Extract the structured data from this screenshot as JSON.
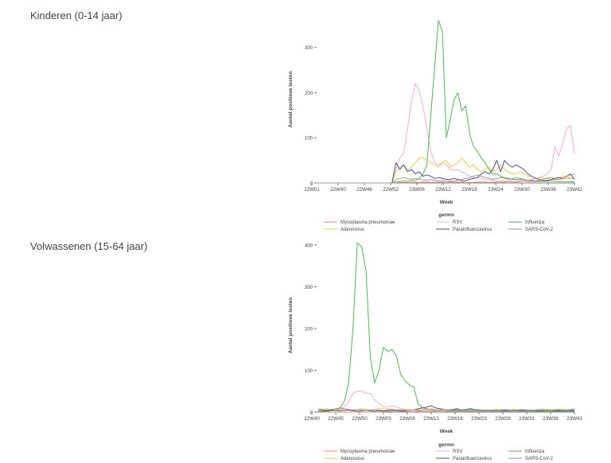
{
  "sections": [
    {
      "title": "Kinderen (0-14 jaar)"
    },
    {
      "title": "Volwassenen (15-64 jaar)"
    }
  ],
  "chart_data": [
    {
      "type": "line",
      "title": "Kinderen (0-14 jaar)",
      "xlabel": "Week",
      "ylabel": "Aantal positieve testen",
      "ylim": [
        0,
        370
      ],
      "yticks": [
        0,
        100,
        200,
        300
      ],
      "xticks": [
        "22W01",
        "22W40",
        "22W46",
        "22W52",
        "23W06",
        "23W12",
        "23W18",
        "23W24",
        "23W30",
        "23W36",
        "23W42"
      ],
      "legend_title": "germn",
      "legend": [
        "Mycoplasma pneumoniae",
        "RSV",
        "Influenza",
        "Adenovirus",
        "Parainfluenzavirus",
        "SARS-CoV-2"
      ],
      "x": [
        0,
        1,
        2,
        3,
        4,
        5,
        6,
        7,
        8,
        9,
        10,
        11,
        12,
        13,
        14,
        15,
        16,
        17,
        18,
        19,
        20,
        21,
        22,
        23,
        24,
        25,
        26,
        27,
        28,
        29,
        30,
        31,
        32,
        33,
        34,
        35,
        36,
        37,
        38,
        39,
        40,
        41,
        42,
        43,
        44,
        45,
        46,
        47,
        48,
        49,
        50,
        51,
        52,
        53,
        54,
        55,
        56,
        57,
        58,
        59,
        60,
        61,
        62,
        63,
        64,
        65,
        66
      ],
      "series": [
        {
          "name": "Mycoplasma pneumoniae",
          "values": [
            0,
            0,
            0,
            0,
            0,
            0,
            0,
            0,
            0,
            0,
            0,
            0,
            0,
            0,
            0,
            0,
            0,
            0,
            0,
            0,
            0,
            1,
            1,
            1,
            1,
            2,
            1,
            2,
            2,
            1,
            2,
            2,
            2,
            1,
            2,
            2,
            2,
            2,
            1,
            1,
            1,
            2,
            2,
            2,
            1,
            2,
            2,
            2,
            2,
            3,
            2,
            2,
            3,
            4,
            3,
            3,
            3,
            3,
            5,
            6,
            7,
            8,
            8,
            9,
            10,
            10,
            12
          ]
        },
        {
          "name": "RSV",
          "values": [
            0,
            0,
            0,
            0,
            0,
            0,
            0,
            0,
            0,
            0,
            0,
            0,
            0,
            0,
            0,
            0,
            0,
            0,
            0,
            0,
            30,
            55,
            65,
            120,
            180,
            220,
            205,
            170,
            120,
            70,
            45,
            40,
            45,
            40,
            30,
            28,
            30,
            25,
            20,
            15,
            12,
            12,
            10,
            8,
            6,
            6,
            5,
            5,
            4,
            4,
            4,
            4,
            5,
            5,
            6,
            8,
            10,
            12,
            15,
            20,
            30,
            80,
            60,
            90,
            120,
            128,
            65
          ]
        },
        {
          "name": "Influenza",
          "values": [
            0,
            0,
            0,
            0,
            0,
            0,
            0,
            0,
            0,
            0,
            0,
            0,
            0,
            0,
            0,
            0,
            0,
            0,
            0,
            0,
            2,
            3,
            4,
            4,
            5,
            6,
            10,
            20,
            40,
            150,
            260,
            360,
            335,
            100,
            140,
            185,
            200,
            160,
            170,
            110,
            80,
            70,
            55,
            45,
            30,
            20,
            20,
            15,
            12,
            10,
            8,
            8,
            8,
            7,
            6,
            6,
            5,
            4,
            4,
            4,
            4,
            4,
            3,
            3,
            3,
            3,
            2
          ]
        },
        {
          "name": "Adenovirus",
          "values": [
            0,
            0,
            0,
            0,
            0,
            0,
            0,
            0,
            0,
            0,
            0,
            0,
            0,
            0,
            0,
            0,
            0,
            0,
            0,
            0,
            25,
            35,
            40,
            30,
            35,
            45,
            55,
            55,
            50,
            45,
            40,
            35,
            45,
            50,
            35,
            40,
            45,
            55,
            45,
            35,
            40,
            30,
            25,
            30,
            35,
            25,
            30,
            40,
            30,
            25,
            20,
            20,
            25,
            20,
            15,
            15,
            10,
            12,
            10,
            12,
            12,
            10,
            12,
            15,
            15,
            12,
            10
          ]
        },
        {
          "name": "Parainfluenzavirus",
          "values": [
            0,
            0,
            0,
            0,
            0,
            0,
            0,
            0,
            0,
            0,
            0,
            0,
            0,
            0,
            0,
            0,
            0,
            0,
            0,
            0,
            45,
            30,
            40,
            25,
            30,
            20,
            25,
            15,
            18,
            15,
            10,
            12,
            10,
            8,
            8,
            10,
            8,
            5,
            5,
            8,
            10,
            12,
            20,
            25,
            20,
            30,
            50,
            25,
            50,
            40,
            35,
            40,
            35,
            30,
            20,
            15,
            10,
            8,
            5,
            5,
            8,
            10,
            12,
            10,
            15,
            20,
            8
          ]
        },
        {
          "name": "SARS-CoV-2",
          "values": [
            0,
            0,
            0,
            0,
            0,
            0,
            0,
            0,
            0,
            0,
            0,
            0,
            0,
            0,
            0,
            0,
            0,
            0,
            0,
            0,
            8,
            10,
            12,
            10,
            8,
            10,
            8,
            7,
            6,
            8,
            6,
            5,
            5,
            4,
            4,
            5,
            6,
            8,
            10,
            12,
            15,
            18,
            15,
            12,
            10,
            8,
            10,
            12,
            10,
            8,
            10,
            12,
            10,
            8,
            6,
            5,
            5,
            6,
            8,
            10,
            12,
            10,
            8,
            10,
            15,
            18,
            20
          ]
        }
      ]
    },
    {
      "type": "line",
      "title": "Volwassenen (15-64 jaar)",
      "xlabel": "Week",
      "ylabel": "Aantal positieve testen",
      "ylim": [
        0,
        415
      ],
      "yticks": [
        0,
        100,
        200,
        300,
        400
      ],
      "xticks": [
        "22W40",
        "22W45",
        "22W50",
        "23W03",
        "23W08",
        "23W13",
        "23W18",
        "23W23",
        "23W28",
        "23W33",
        "23W38",
        "23W43"
      ],
      "legend_title": "germn",
      "legend": [
        "Mycoplasma pneumoniae",
        "RSV",
        "Influenza",
        "Adenovirus",
        "Parainfluenzavirus",
        "SARS-CoV-2"
      ],
      "x": [
        0,
        1,
        2,
        3,
        4,
        5,
        6,
        7,
        8,
        9,
        10,
        11,
        12,
        13,
        14,
        15,
        16,
        17,
        18,
        19,
        20,
        21,
        22,
        23,
        24,
        25,
        26,
        27,
        28,
        29,
        30,
        31,
        32,
        33,
        34,
        35,
        36,
        37,
        38,
        39,
        40,
        41,
        42,
        43,
        44,
        45,
        46,
        47,
        48,
        49,
        50,
        51,
        52,
        53,
        54,
        55,
        56,
        57,
        58,
        59
      ],
      "series": [
        {
          "name": "Mycoplasma pneumoniae",
          "values": [
            0,
            0,
            0,
            0,
            0,
            0,
            0,
            0,
            0,
            0,
            0,
            0,
            0,
            0,
            0,
            0,
            1,
            1,
            0,
            1,
            1,
            1,
            1,
            2,
            1,
            1,
            1,
            2,
            1,
            1,
            2,
            2,
            2,
            1,
            2,
            2,
            1,
            2,
            2,
            1,
            2,
            2,
            2,
            2,
            2,
            2,
            2,
            2,
            2,
            3,
            2,
            2,
            3,
            3,
            3,
            4,
            4,
            5,
            6,
            7
          ]
        },
        {
          "name": "RSV",
          "values": [
            0,
            2,
            2,
            3,
            5,
            8,
            12,
            25,
            45,
            50,
            50,
            45,
            45,
            30,
            20,
            15,
            12,
            15,
            12,
            8,
            6,
            5,
            5,
            4,
            3,
            3,
            3,
            2,
            2,
            2,
            2,
            2,
            2,
            2,
            2,
            2,
            2,
            2,
            2,
            2,
            2,
            2,
            2,
            2,
            2,
            2,
            2,
            2,
            2,
            2,
            2,
            2,
            2,
            3,
            3,
            3,
            3,
            3,
            4,
            4
          ]
        },
        {
          "name": "Influenza",
          "values": [
            0,
            1,
            2,
            3,
            5,
            10,
            25,
            70,
            200,
            405,
            395,
            340,
            130,
            70,
            100,
            155,
            145,
            150,
            135,
            90,
            75,
            65,
            60,
            20,
            10,
            8,
            6,
            5,
            4,
            4,
            3,
            3,
            3,
            3,
            3,
            3,
            3,
            3,
            3,
            3,
            3,
            3,
            3,
            3,
            3,
            3,
            3,
            3,
            3,
            2,
            2,
            2,
            2,
            2,
            2,
            2,
            2,
            2,
            2,
            2
          ]
        },
        {
          "name": "Adenovirus",
          "values": [
            5,
            6,
            8,
            5,
            5,
            6,
            8,
            6,
            5,
            6,
            8,
            6,
            5,
            6,
            8,
            10,
            8,
            6,
            5,
            6,
            5,
            6,
            5,
            6,
            5,
            6,
            8,
            6,
            5,
            4,
            5,
            6,
            5,
            4,
            5,
            6,
            5,
            6,
            5,
            4,
            5,
            6,
            5,
            4,
            5,
            6,
            5,
            6,
            5,
            4,
            5,
            6,
            7,
            6,
            5,
            6,
            7,
            6,
            5,
            6
          ]
        },
        {
          "name": "Parainfluenzavirus",
          "values": [
            3,
            4,
            3,
            5,
            4,
            3,
            4,
            5,
            3,
            2,
            3,
            4,
            3,
            2,
            3,
            2,
            3,
            4,
            3,
            2,
            3,
            4,
            5,
            8,
            10,
            12,
            15,
            10,
            8,
            6,
            5,
            6,
            8,
            5,
            6,
            8,
            6,
            5,
            4,
            5,
            4,
            5,
            4,
            3,
            4,
            5,
            4,
            3,
            4,
            5,
            4,
            3,
            4,
            5,
            4,
            3,
            4,
            3,
            4,
            3
          ]
        },
        {
          "name": "SARS-CoV-2",
          "values": [
            8,
            6,
            5,
            6,
            8,
            10,
            8,
            6,
            5,
            6,
            5,
            4,
            5,
            6,
            5,
            4,
            5,
            6,
            5,
            4,
            5,
            4,
            5,
            4,
            5,
            6,
            5,
            4,
            5,
            6,
            5,
            4,
            5,
            4,
            5,
            6,
            5,
            4,
            5,
            4,
            5,
            4,
            5,
            6,
            5,
            4,
            5,
            6,
            5,
            4,
            5,
            6,
            5,
            4,
            5,
            6,
            5,
            4,
            5,
            6
          ]
        }
      ]
    }
  ],
  "colors": {
    "Mycoplasma pneumoniae": "#f08a5d",
    "RSV": "#f2a8d8",
    "Influenza": "#4cb84c",
    "Adenovirus": "#f5cc3a",
    "Parainfluenzavirus": "#4d4d9e",
    "SARS-CoV-2": "#9a9a9a",
    "axis": "#555555",
    "text": "#444444"
  }
}
